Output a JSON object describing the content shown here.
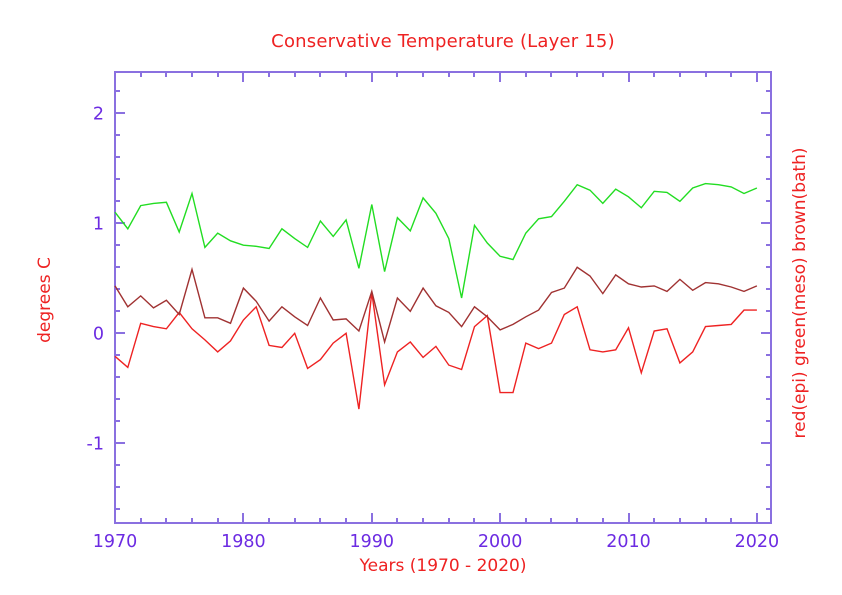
{
  "title": "Conservative Temperature (Layer 15)",
  "colors": {
    "text_red": "#ee2222",
    "tick_label_purple": "#6c2be2",
    "axis_purple": "#8a70e0",
    "series_red": "#ee2222",
    "series_green": "#22dd22",
    "series_brown": "#a03232",
    "background": "#ffffff"
  },
  "chart_data": {
    "type": "line",
    "title": "Conservative Temperature (Layer 15)",
    "xlabel": "Years (1970 - 2020)",
    "ylabel_left": "degrees C",
    "ylabel_right": "red(epi) green(meso) brown(bath)",
    "grid": false,
    "legend_position": "right-axis-label",
    "x": [
      1970,
      1971,
      1972,
      1973,
      1974,
      1975,
      1976,
      1977,
      1978,
      1979,
      1980,
      1981,
      1982,
      1983,
      1984,
      1985,
      1986,
      1987,
      1988,
      1989,
      1990,
      1991,
      1992,
      1993,
      1994,
      1995,
      1996,
      1997,
      1998,
      1999,
      2000,
      2001,
      2002,
      2003,
      2004,
      2005,
      2006,
      2007,
      2008,
      2009,
      2010,
      2011,
      2012,
      2013,
      2014,
      2015,
      2016,
      2017,
      2018,
      2019,
      2020
    ],
    "x_axis": {
      "min": 1970,
      "max": 2021.1,
      "major_ticks": [
        1970,
        1980,
        1990,
        2000,
        2010,
        2020
      ],
      "minor_step": 2
    },
    "y_axis": {
      "min": -1.725,
      "max": 2.375,
      "major_ticks": [
        -1,
        0,
        1,
        2
      ],
      "minor_step": 0.2
    },
    "series": [
      {
        "name": "meso",
        "color_key": "series_green",
        "label": "green(meso)",
        "values": [
          1.1,
          0.95,
          1.16,
          1.18,
          1.19,
          0.92,
          1.27,
          0.78,
          0.91,
          0.84,
          0.8,
          0.79,
          0.77,
          0.95,
          0.86,
          0.78,
          1.02,
          0.88,
          1.03,
          0.59,
          1.17,
          0.56,
          1.05,
          0.93,
          1.23,
          1.09,
          0.86,
          0.32,
          0.98,
          0.82,
          0.7,
          0.67,
          0.91,
          1.04,
          1.06,
          1.2,
          1.35,
          1.3,
          1.18,
          1.31,
          1.24,
          1.14,
          1.29,
          1.28,
          1.2,
          1.32,
          1.36,
          1.35,
          1.33,
          1.27,
          1.32
        ]
      },
      {
        "name": "epi",
        "color_key": "series_red",
        "label": "red(epi)",
        "values": [
          -0.21,
          -0.31,
          0.09,
          0.06,
          0.04,
          0.19,
          0.04,
          -0.06,
          -0.17,
          -0.07,
          0.12,
          0.24,
          -0.11,
          -0.13,
          0.0,
          -0.32,
          -0.24,
          -0.09,
          0.0,
          -0.69,
          0.37,
          -0.47,
          -0.17,
          -0.08,
          -0.22,
          -0.12,
          -0.29,
          -0.33,
          0.06,
          0.16,
          -0.54,
          -0.54,
          -0.09,
          -0.14,
          -0.09,
          0.17,
          0.24,
          -0.15,
          -0.17,
          -0.15,
          0.05,
          -0.36,
          0.02,
          0.04,
          -0.27,
          -0.17,
          0.06,
          0.07,
          0.08,
          0.21,
          0.21
        ]
      },
      {
        "name": "bath",
        "color_key": "series_brown",
        "label": "brown(bath)",
        "values": [
          0.43,
          0.24,
          0.34,
          0.23,
          0.3,
          0.17,
          0.58,
          0.14,
          0.14,
          0.09,
          0.41,
          0.29,
          0.11,
          0.24,
          0.15,
          0.07,
          0.32,
          0.12,
          0.13,
          0.02,
          0.38,
          -0.08,
          0.32,
          0.2,
          0.41,
          0.25,
          0.19,
          0.06,
          0.24,
          0.15,
          0.03,
          0.08,
          0.15,
          0.21,
          0.37,
          0.41,
          0.6,
          0.52,
          0.36,
          0.53,
          0.45,
          0.42,
          0.43,
          0.38,
          0.49,
          0.39,
          0.46,
          0.45,
          0.42,
          0.38,
          0.43
        ]
      }
    ]
  }
}
